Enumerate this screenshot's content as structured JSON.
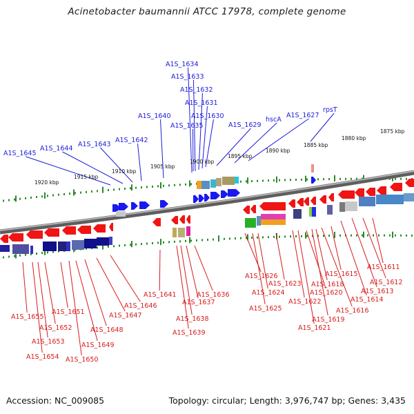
{
  "title": "Acinetobacter baumannii ATCC 17978, complete genome",
  "accession": "Accession: NC_009085",
  "summary": "Topology: circular; Length: 3,976,747 bp; Genes: 3,435",
  "colors": {
    "forward_gene": "#1a1af0",
    "reverse_gene": "#f01414",
    "backbone": "#7a7a7a",
    "tick": "#2a8a2a",
    "label_blue": "#1a1adc",
    "label_red": "#d81a1a"
  },
  "kbp_labels": [
    "1920 kbp",
    "1915 kbp",
    "1910 kbp",
    "1905 kbp",
    "1900 kbp",
    "1895 kbp",
    "1890 kbp",
    "1885 kbp",
    "1880 kbp",
    "1875 kbp"
  ],
  "forward_labels": [
    "A1S_1645",
    "A1S_1644",
    "A1S_1643",
    "A1S_1642",
    "A1S_1640",
    "A1S_1634",
    "A1S_1633",
    "A1S_1632",
    "A1S_1631",
    "A1S_1630",
    "A1S_1635",
    "A1S_1629",
    "hscA",
    "A1S_1627",
    "rpsT"
  ],
  "reverse_labels": [
    "A1S_1655",
    "A1S_1654",
    "A1S_1653",
    "A1S_1652",
    "A1S_1651",
    "A1S_1650",
    "A1S_1649",
    "A1S_1648",
    "A1S_1647",
    "A1S_1646",
    "A1S_1641",
    "A1S_1639",
    "A1S_1638",
    "A1S_1637",
    "A1S_1636",
    "A1S_1626",
    "A1S_1625",
    "A1S_1624",
    "A1S_1623",
    "A1S_1622",
    "A1S_1621",
    "A1S_1620",
    "A1S_1619",
    "A1S_1618",
    "A1S_1616",
    "A1S_1615",
    "A1S_1614",
    "A1S_1613",
    "A1S_1612",
    "A1S_1611"
  ]
}
